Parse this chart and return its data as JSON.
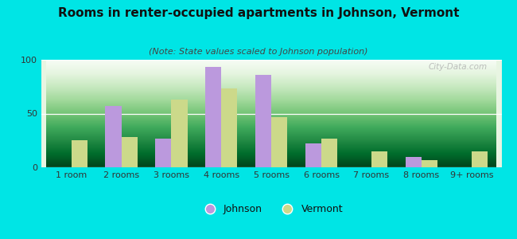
{
  "title": "Rooms in renter-occupied apartments in Johnson, Vermont",
  "subtitle": "(Note: State values scaled to Johnson population)",
  "categories": [
    "1 room",
    "2 rooms",
    "3 rooms",
    "4 rooms",
    "5 rooms",
    "6 rooms",
    "7 rooms",
    "8 rooms",
    "9+ rooms"
  ],
  "johnson_values": [
    0,
    57,
    27,
    93,
    86,
    22,
    0,
    10,
    0
  ],
  "vermont_values": [
    25,
    28,
    63,
    73,
    47,
    27,
    15,
    7,
    15
  ],
  "johnson_color": "#bb99dd",
  "vermont_color": "#ccd98a",
  "bg_color": "#00e5e5",
  "ylim": [
    0,
    100
  ],
  "yticks": [
    0,
    50,
    100
  ],
  "title_fontsize": 11,
  "subtitle_fontsize": 8,
  "legend_johnson": "Johnson",
  "legend_vermont": "Vermont",
  "watermark": "City-Data.com",
  "bar_width": 0.32
}
